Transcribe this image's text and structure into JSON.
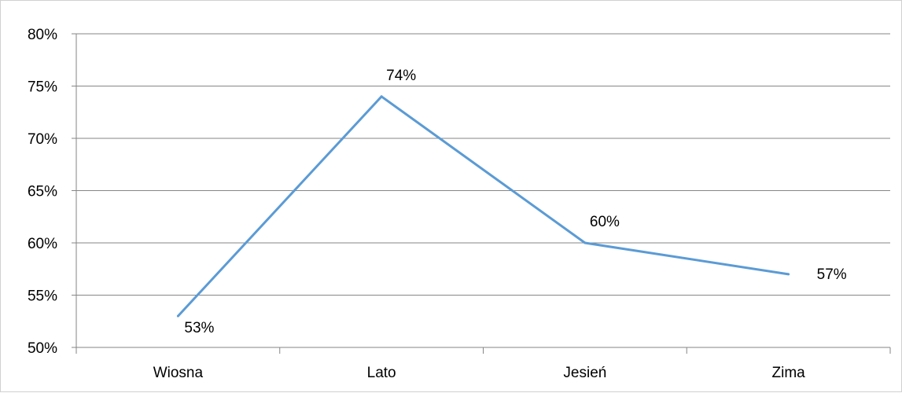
{
  "chart_data": {
    "type": "line",
    "categories": [
      "Wiosna",
      "Lato",
      "Jesień",
      "Zima"
    ],
    "series": [
      {
        "values": [
          53,
          74,
          60,
          57
        ]
      }
    ],
    "data_labels": [
      "53%",
      "74%",
      "60%",
      "57%"
    ],
    "y_ticks": [
      "50%",
      "55%",
      "60%",
      "65%",
      "70%",
      "75%",
      "80%"
    ],
    "ylim": [
      50,
      80
    ],
    "grid": true,
    "legend": "none",
    "colors": {
      "line": "#5b9bd5",
      "grid": "#868686",
      "axis": "#868686"
    }
  }
}
